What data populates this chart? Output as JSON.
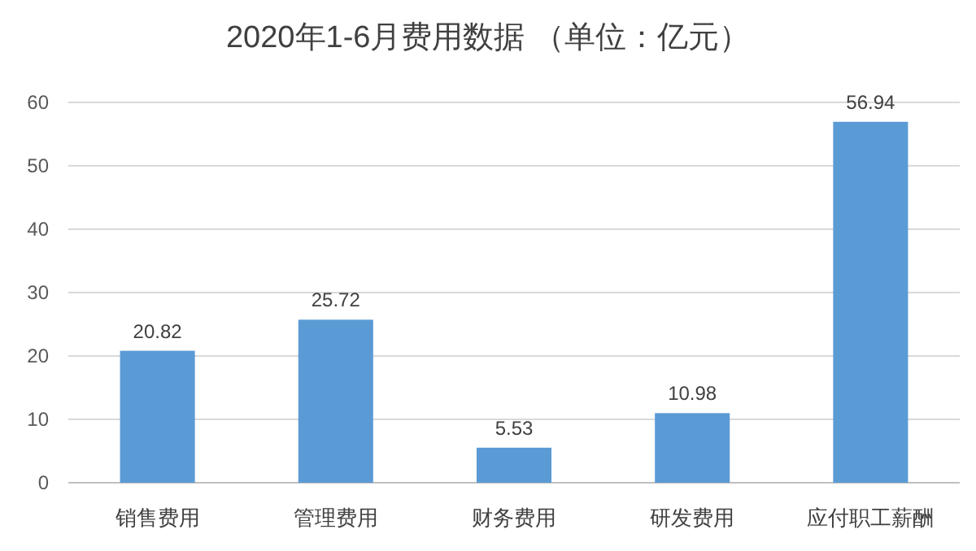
{
  "chart_data": {
    "type": "bar",
    "title": "2020年1-6月费用数据 （单位：亿元）",
    "categories": [
      "销售费用",
      "管理费用",
      "财务费用",
      "研发费用",
      "应付职工薪酬"
    ],
    "values": [
      20.82,
      25.72,
      5.53,
      10.98,
      56.94
    ],
    "color": "#5b9bd5",
    "ylim": [
      0,
      60
    ],
    "yticks": [
      0,
      10,
      20,
      30,
      40,
      50,
      60
    ],
    "grid": "y",
    "data_labels": true
  }
}
